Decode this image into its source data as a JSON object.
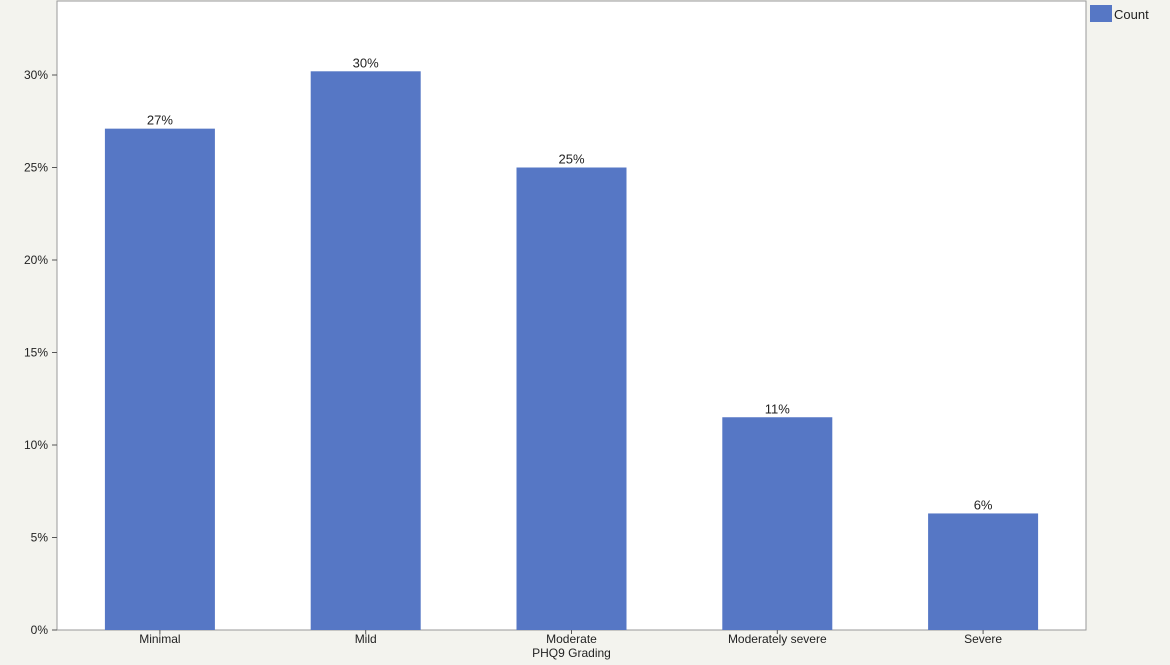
{
  "chart_data": {
    "type": "bar",
    "categories": [
      "Minimal",
      "Mild",
      "Moderate",
      "Moderately severe",
      "Severe"
    ],
    "series": [
      {
        "name": "Count",
        "values": [
          27.1,
          30.2,
          25.0,
          11.5,
          6.3
        ],
        "data_labels": [
          "27%",
          "30%",
          "25%",
          "11%",
          "6%"
        ],
        "color": "#5677c5"
      }
    ],
    "title": "",
    "xlabel": "PHQ9 Grading",
    "ylabel": "",
    "ylim": [
      0,
      34
    ],
    "yticks": [
      0,
      5,
      10,
      15,
      20,
      25,
      30
    ],
    "ytick_labels": [
      "0%",
      "5%",
      "10%",
      "15%",
      "20%",
      "25%",
      "30%"
    ],
    "grid": false,
    "legend_position": "top-right",
    "background_color": "#f3f3ee",
    "plot_background_color": "#ffffff"
  }
}
